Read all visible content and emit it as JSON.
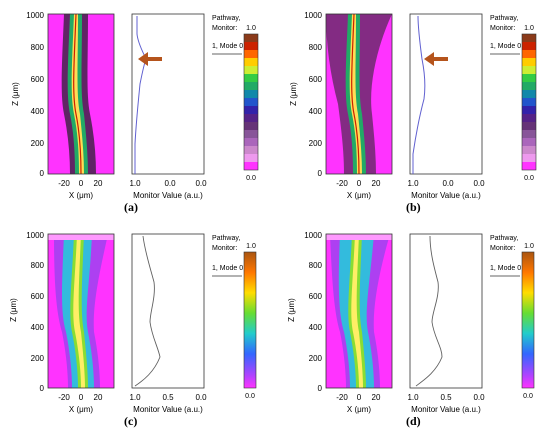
{
  "panels": [
    {
      "id": "a",
      "caption": "(a)",
      "scale": "dark",
      "has_arrow": true,
      "z_ticks": [
        "1000",
        "800",
        "600",
        "400",
        "200",
        "0"
      ],
      "x_ticks": [
        "-20",
        "0",
        "20"
      ],
      "m_ticks": [
        "1.0",
        "0.0",
        "0.0"
      ]
    },
    {
      "id": "b",
      "caption": "(b)",
      "scale": "dark",
      "has_arrow": true,
      "z_ticks": [
        "1000",
        "800",
        "600",
        "400",
        "200",
        "0"
      ],
      "x_ticks": [
        "-20",
        "0",
        "20"
      ],
      "m_ticks": [
        "1.0",
        "0.0",
        "0.0"
      ]
    },
    {
      "id": "c",
      "caption": "(c)",
      "scale": "light",
      "has_arrow": false,
      "z_ticks": [
        "1000",
        "800",
        "600",
        "400",
        "200",
        "0"
      ],
      "x_ticks": [
        "-20",
        "0",
        "20"
      ],
      "m_ticks": [
        "1.0",
        "0.5",
        "0.0"
      ]
    },
    {
      "id": "d",
      "caption": "(d)",
      "scale": "light",
      "has_arrow": false,
      "z_ticks": [
        "1000",
        "800",
        "600",
        "400",
        "200",
        "0"
      ],
      "x_ticks": [
        "-20",
        "0",
        "20"
      ],
      "m_ticks": [
        "1.0",
        "0.5",
        "0.0"
      ]
    }
  ],
  "labels": {
    "z_axis": "Z (μm)",
    "x_axis": "X (μm)",
    "monitor_axis": "Monitor Value (a.u.)",
    "legend_line1": "Pathway,",
    "legend_line2": "Monitor:",
    "legend_mode": "1, Mode 0",
    "scale_max": "1.0",
    "scale_min": "0.0"
  },
  "colors": {
    "background": "#ff33ff",
    "guide_core": "#ffdd55",
    "arrow": "#b5541c",
    "monitor_dark": "#6060d0",
    "monitor_light": "#606060"
  }
}
